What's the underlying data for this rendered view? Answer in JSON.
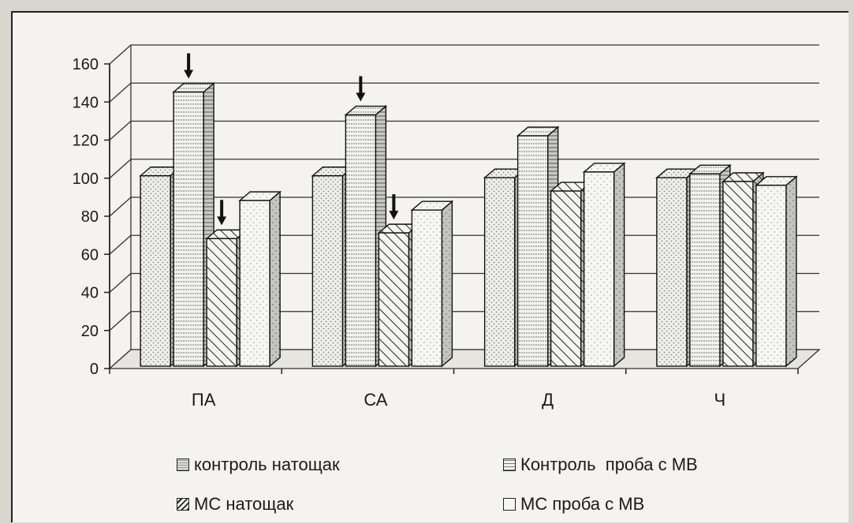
{
  "chart_data": {
    "type": "bar",
    "categories": [
      "ПА",
      "СА",
      "Д",
      "Ч"
    ],
    "series": [
      {
        "name": "контроль натощак",
        "values": [
          100,
          100,
          99,
          99
        ]
      },
      {
        "name": "Контроль  проба с МВ",
        "values": [
          144,
          132,
          121,
          101
        ]
      },
      {
        "name": "МС натощак",
        "values": [
          67,
          70,
          92,
          97
        ]
      },
      {
        "name": "МС проба с МВ",
        "values": [
          87,
          82,
          102,
          95
        ]
      }
    ],
    "y_ticks": [
      "0",
      "20",
      "40",
      "60",
      "80",
      "100",
      "120",
      "140",
      "160"
    ],
    "ylim": [
      0,
      160
    ],
    "grid": true,
    "legend_position": "bottom",
    "arrows": [
      {
        "category": "ПА",
        "series": "Контроль  проба с МВ",
        "direction": "down"
      },
      {
        "category": "ПА",
        "series": "МС натощак",
        "direction": "down"
      },
      {
        "category": "СА",
        "series": "Контроль  проба с МВ",
        "direction": "down"
      },
      {
        "category": "СА",
        "series": "МС натощак",
        "direction": "down"
      }
    ],
    "colors": {
      "background": "#f4f3ef",
      "bar_fill": "#eeeeea",
      "ink": "#1a1a1a"
    }
  }
}
